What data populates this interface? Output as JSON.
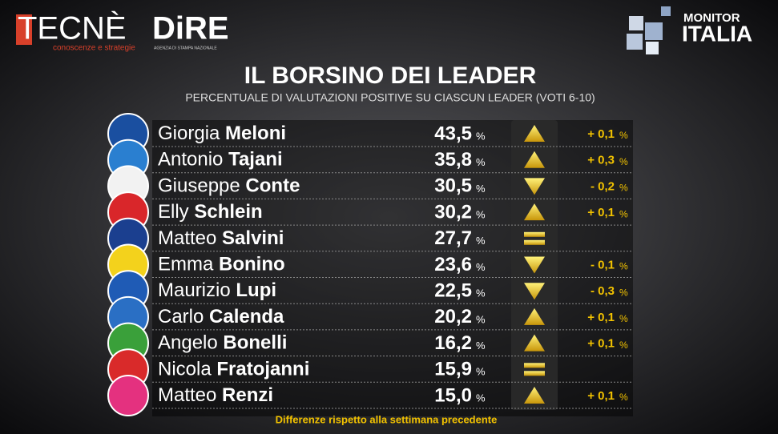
{
  "header": {
    "brand_left": "TECNÈ",
    "brand_left_tagline": "conoscenze e strategie",
    "brand_mid": "DiRE",
    "brand_mid_tagline": "AGENZIA DI STAMPA NAZIONALE",
    "brand_right_top": "MONITOR",
    "brand_right_bottom": "ITALIA"
  },
  "title": "IL BORSINO DEI LEADER",
  "subtitle": "PERCENTUALE DI VALUTAZIONI POSITIVE SU CIASCUN LEADER (VOTI 6-10)",
  "table": {
    "rows": [
      {
        "first": "Giorgia",
        "last": "Meloni",
        "value": "43,5",
        "value_unit": "%",
        "trend": "up",
        "change": "+ 0,1",
        "change_unit": "%",
        "color": "#1a4fa0"
      },
      {
        "first": "Antonio",
        "last": "Tajani",
        "value": "35,8",
        "value_unit": "%",
        "trend": "up",
        "change": "+ 0,3",
        "change_unit": "%",
        "color": "#2a7fd0"
      },
      {
        "first": "Giuseppe",
        "last": "Conte",
        "value": "30,5",
        "value_unit": "%",
        "trend": "down",
        "change": "- 0,2",
        "change_unit": "%",
        "color": "#f2f2f2"
      },
      {
        "first": "Elly",
        "last": "Schlein",
        "value": "30,2",
        "value_unit": "%",
        "trend": "up",
        "change": "+ 0,1",
        "change_unit": "%",
        "color": "#d9262a"
      },
      {
        "first": "Matteo",
        "last": "Salvini",
        "value": "27,7",
        "value_unit": "%",
        "trend": "equal",
        "color": "#1b3f8f"
      },
      {
        "first": "Emma",
        "last": "Bonino",
        "value": "23,6",
        "value_unit": "%",
        "trend": "down",
        "change": "- 0,1",
        "change_unit": "%",
        "color": "#f3d21c"
      },
      {
        "first": "Maurizio",
        "last": "Lupi",
        "value": "22,5",
        "value_unit": "%",
        "trend": "down",
        "change": "- 0,3",
        "change_unit": "%",
        "color": "#1f5bb5"
      },
      {
        "first": "Carlo",
        "last": "Calenda",
        "value": "20,2",
        "value_unit": "%",
        "trend": "up",
        "change": "+ 0,1",
        "change_unit": "%",
        "color": "#2a6fc4"
      },
      {
        "first": "Angelo",
        "last": "Bonelli",
        "value": "16,2",
        "value_unit": "%",
        "trend": "up",
        "change": "+ 0,1",
        "change_unit": "%",
        "color": "#3aa03a"
      },
      {
        "first": "Nicola",
        "last": "Fratojanni",
        "value": "15,9",
        "value_unit": "%",
        "trend": "equal",
        "color": "#d92a2a"
      },
      {
        "first": "Matteo",
        "last": "Renzi",
        "value": "15,0",
        "value_unit": "%",
        "trend": "up",
        "change": "+ 0,1",
        "change_unit": "%",
        "color": "#e4317f"
      }
    ]
  },
  "footer": "Differenze rispetto alla settimana precedente"
}
